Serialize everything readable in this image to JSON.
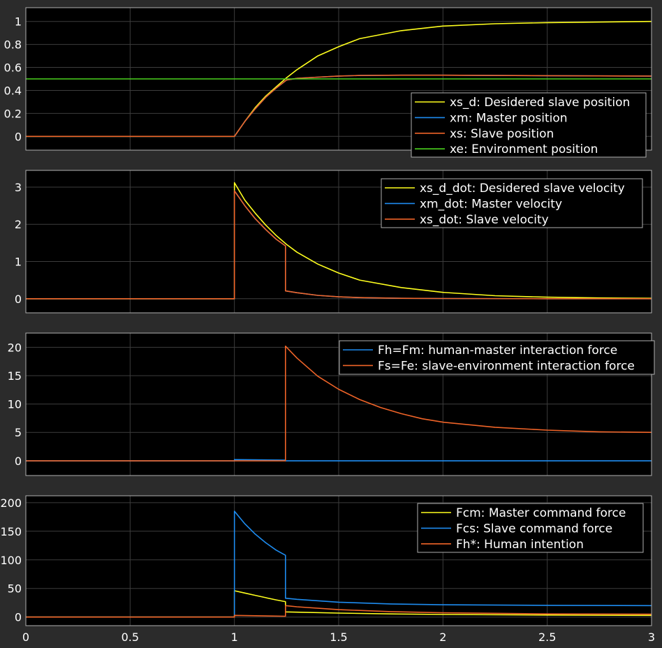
{
  "colors": {
    "figure_bg": "#2b2b2b",
    "axes_bg": "#000000",
    "grid": "#3d3d3d",
    "axis_line": "#b0b0b0",
    "text": "#ffffff",
    "yellow": "#ffff1e",
    "blue": "#1e8cf0",
    "orange": "#f06428",
    "green": "#4bd21e"
  },
  "chart_data": [
    {
      "type": "line",
      "xlim": [
        0,
        3
      ],
      "ylim": [
        -0.12,
        1.12
      ],
      "grid": true,
      "legend_placement": "bottom-right",
      "yticks": [
        0,
        0.2,
        0.4,
        0.6,
        0.8,
        1
      ],
      "ytick_labels": [
        "0",
        "0.2",
        "0.4",
        "0.6",
        "0.8",
        "1"
      ],
      "series": [
        {
          "name": "xs_d: Desidered slave position",
          "color": "yellow",
          "x": [
            0,
            1,
            1.05,
            1.1,
            1.15,
            1.2,
            1.25,
            1.3,
            1.4,
            1.5,
            1.6,
            1.8,
            2,
            2.25,
            2.5,
            2.75,
            3
          ],
          "y": [
            0,
            0,
            0.13,
            0.25,
            0.35,
            0.43,
            0.51,
            0.58,
            0.7,
            0.78,
            0.85,
            0.92,
            0.96,
            0.98,
            0.99,
            0.995,
            1
          ]
        },
        {
          "name": "xm: Master position",
          "color": "blue",
          "x": [
            0,
            1,
            1.05,
            1.1,
            1.15,
            1.2,
            1.25,
            1.3,
            1.4,
            1.5,
            1.6,
            1.8,
            2,
            2.25,
            2.5,
            2.75,
            3
          ],
          "y": [
            0,
            0,
            0.13,
            0.24,
            0.34,
            0.42,
            0.49,
            0.505,
            0.515,
            0.525,
            0.53,
            0.532,
            0.532,
            0.53,
            0.528,
            0.526,
            0.525
          ]
        },
        {
          "name": "xs: Slave position",
          "color": "orange",
          "x": [
            0,
            1,
            1.05,
            1.1,
            1.15,
            1.2,
            1.25,
            1.3,
            1.4,
            1.5,
            1.6,
            1.8,
            2,
            2.25,
            2.5,
            2.75,
            3
          ],
          "y": [
            0,
            0,
            0.13,
            0.24,
            0.34,
            0.42,
            0.49,
            0.505,
            0.515,
            0.525,
            0.53,
            0.532,
            0.532,
            0.53,
            0.528,
            0.526,
            0.525
          ]
        },
        {
          "name": "xe: Environment position",
          "color": "green",
          "x": [
            0,
            3
          ],
          "y": [
            0.5,
            0.5
          ]
        }
      ]
    },
    {
      "type": "line",
      "xlim": [
        0,
        3
      ],
      "ylim": [
        -0.38,
        3.45
      ],
      "grid": true,
      "legend_placement": "top-right",
      "yticks": [
        0,
        1,
        2,
        3
      ],
      "ytick_labels": [
        "0",
        "1",
        "2",
        "3"
      ],
      "series": [
        {
          "name": "xs_d_dot: Desidered slave velocity",
          "color": "yellow",
          "x": [
            0,
            1,
            1,
            1.05,
            1.1,
            1.15,
            1.2,
            1.25,
            1.3,
            1.4,
            1.5,
            1.6,
            1.8,
            2,
            2.25,
            2.5,
            2.75,
            3
          ],
          "y": [
            0,
            0,
            3.12,
            2.65,
            2.3,
            1.98,
            1.7,
            1.46,
            1.25,
            0.93,
            0.69,
            0.5,
            0.3,
            0.17,
            0.08,
            0.04,
            0.02,
            0.01
          ]
        },
        {
          "name": "xm_dot: Master velocity",
          "color": "blue",
          "x": [
            0,
            1,
            1,
            1.05,
            1.1,
            1.15,
            1.2,
            1.245,
            1.245,
            1.3,
            1.4,
            1.5,
            1.6,
            1.8,
            2,
            2.5,
            3
          ],
          "y": [
            0,
            0,
            2.9,
            2.5,
            2.15,
            1.86,
            1.6,
            1.42,
            0.21,
            0.16,
            0.09,
            0.05,
            0.03,
            0.01,
            0.005,
            0,
            0
          ]
        },
        {
          "name": "xs_dot: Slave velocity",
          "color": "orange",
          "x": [
            0,
            1,
            1,
            1.05,
            1.1,
            1.15,
            1.2,
            1.245,
            1.245,
            1.3,
            1.4,
            1.5,
            1.6,
            1.8,
            2,
            2.5,
            3
          ],
          "y": [
            0,
            0,
            2.9,
            2.5,
            2.15,
            1.86,
            1.6,
            1.42,
            0.21,
            0.16,
            0.09,
            0.05,
            0.03,
            0.01,
            0.005,
            0,
            0
          ]
        }
      ]
    },
    {
      "type": "line",
      "xlim": [
        0,
        3
      ],
      "ylim": [
        -2.6,
        22.5
      ],
      "grid": true,
      "legend_placement": "top-right",
      "yticks": [
        0,
        5,
        10,
        15,
        20
      ],
      "ytick_labels": [
        "0",
        "5",
        "10",
        "15",
        "20"
      ],
      "series": [
        {
          "name": "Fh=Fm: human-master interaction force",
          "color": "blue",
          "x": [
            0,
            1,
            1,
            1.245,
            1.245,
            3
          ],
          "y": [
            0,
            0,
            0.2,
            0.12,
            0,
            0
          ]
        },
        {
          "name": "Fs=Fe: slave-environment interaction force",
          "color": "orange",
          "x": [
            0,
            1.245,
            1.245,
            1.3,
            1.4,
            1.5,
            1.6,
            1.7,
            1.8,
            1.9,
            2,
            2.25,
            2.5,
            2.75,
            3
          ],
          "y": [
            0,
            0,
            20.2,
            18.1,
            14.9,
            12.6,
            10.8,
            9.4,
            8.3,
            7.4,
            6.8,
            5.9,
            5.4,
            5.1,
            5
          ]
        }
      ]
    },
    {
      "type": "line",
      "xlim": [
        0,
        3
      ],
      "ylim": [
        -15,
        212
      ],
      "grid": true,
      "legend_placement": "top-right",
      "xticks": [
        0,
        0.5,
        1,
        1.5,
        2,
        2.5,
        3
      ],
      "xtick_labels": [
        "0",
        "0.5",
        "1",
        "1.5",
        "2",
        "2.5",
        "3"
      ],
      "yticks": [
        0,
        50,
        100,
        150,
        200
      ],
      "ytick_labels": [
        "0",
        "50",
        "100",
        "150",
        "200"
      ],
      "series": [
        {
          "name": "Fcm: Master command force",
          "color": "yellow",
          "x": [
            0,
            1,
            1,
            1.05,
            1.1,
            1.15,
            1.2,
            1.245,
            1.245,
            1.3,
            1.5,
            1.75,
            2,
            2.5,
            3
          ],
          "y": [
            0,
            0,
            46,
            42,
            38,
            34,
            30,
            27,
            9,
            8.5,
            7,
            5.5,
            4.5,
            3.5,
            3
          ]
        },
        {
          "name": "Fcs: Slave command force",
          "color": "blue",
          "x": [
            0,
            1,
            1,
            1.05,
            1.1,
            1.15,
            1.2,
            1.245,
            1.245,
            1.3,
            1.5,
            1.75,
            2,
            2.5,
            3
          ],
          "y": [
            0,
            0,
            185,
            163,
            145,
            130,
            117,
            108,
            33,
            31,
            26,
            23,
            21.5,
            20.5,
            20
          ]
        },
        {
          "name": "Fh*: Human intention",
          "color": "orange",
          "x": [
            0,
            1,
            1,
            1.245,
            1.245,
            1.3,
            1.5,
            1.75,
            2,
            2.5,
            3
          ],
          "y": [
            0,
            0,
            3,
            1.5,
            20,
            18,
            13,
            9.5,
            7.5,
            5.5,
            5
          ]
        }
      ]
    }
  ]
}
